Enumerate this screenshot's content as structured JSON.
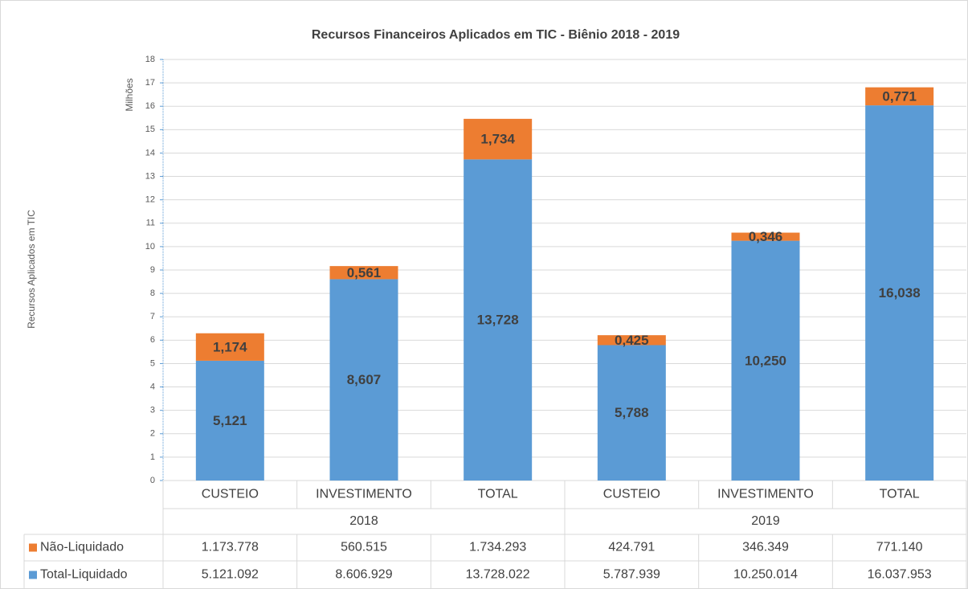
{
  "chart_data": {
    "type": "stacked_bar",
    "title": "Recursos Financeiros Aplicados em TIC - Biênio 2018 - 2019",
    "y_label": "Recursos Aplicados em TIC",
    "y_unit_label": "Milhões",
    "groups": [
      {
        "label": "2018",
        "categories": [
          "CUSTEIO",
          "INVESTIMENTO",
          "TOTAL"
        ]
      },
      {
        "label": "2019",
        "categories": [
          "CUSTEIO",
          "INVESTIMENTO",
          "TOTAL"
        ]
      }
    ],
    "series": [
      {
        "name": "Não-Liquidado",
        "color": "#ed7d31",
        "values": [
          1.173778,
          0.560515,
          1.734293,
          0.424791,
          0.346349,
          0.77114
        ],
        "value_labels": [
          "1,174",
          "0,561",
          "1,734",
          "0,425",
          "0,346",
          "0,771"
        ],
        "table_labels": [
          "1.173.778",
          "560.515",
          "1.734.293",
          "424.791",
          "346.349",
          "771.140"
        ]
      },
      {
        "name": "Total-Liquidado",
        "color": "#5b9bd5",
        "values": [
          5.121092,
          8.606929,
          13.728022,
          5.787939,
          10.250014,
          16.037953
        ],
        "value_labels": [
          "5,121",
          "8,607",
          "13,728",
          "5,788",
          "10,250",
          "16,038"
        ],
        "table_labels": [
          "5.121.092",
          "8.606.929",
          "13.728.022",
          "5.787.939",
          "10.250.014",
          "16.037.953"
        ]
      }
    ],
    "ylim": [
      0,
      18
    ],
    "yticks": [
      0,
      1,
      2,
      3,
      4,
      5,
      6,
      7,
      8,
      9,
      10,
      11,
      12,
      13,
      14,
      15,
      16,
      17,
      18
    ],
    "grid": true
  }
}
